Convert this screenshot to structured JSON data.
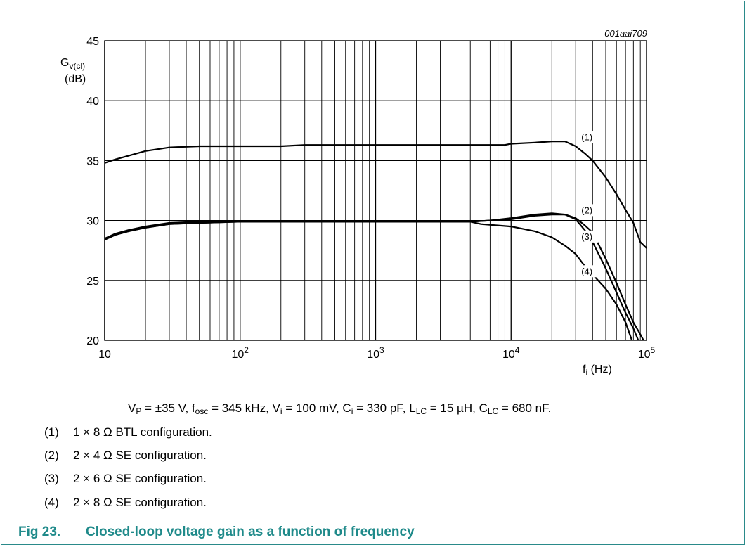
{
  "figure_id": "001aai709",
  "caption": {
    "number": "Fig 23.",
    "title": "Closed-loop voltage gain as a function of frequency"
  },
  "conditions": {
    "vp": "V",
    "vp_sub": "P",
    "vp_val": " = ±35 V, ",
    "fosc": "f",
    "fosc_sub": "osc",
    "fosc_val": " = 345 kHz, ",
    "vi": "V",
    "vi_sub": "i",
    "vi_val": " = 100 mV, ",
    "ci": "C",
    "ci_sub": "i",
    "ci_val": " = 330 pF, ",
    "llc": "L",
    "llc_sub": "LC",
    "llc_val": " = 15 µH, ",
    "clc": "C",
    "clc_sub": "LC",
    "clc_val": " = 680 nF."
  },
  "notes": [
    {
      "num": "(1)",
      "text": "1 × 8 Ω BTL configuration."
    },
    {
      "num": "(2)",
      "text": "2 × 4 Ω SE configuration."
    },
    {
      "num": "(3)",
      "text": "2 × 6 Ω SE configuration."
    },
    {
      "num": "(4)",
      "text": "2 × 8 Ω SE configuration."
    }
  ],
  "chart_data": {
    "type": "line",
    "xscale": "log",
    "xlim": [
      10,
      100000
    ],
    "ylim": [
      20,
      45
    ],
    "xticks": [
      {
        "value": 10,
        "base": "10",
        "exp": ""
      },
      {
        "value": 100,
        "base": "10",
        "exp": "2"
      },
      {
        "value": 1000,
        "base": "10",
        "exp": "3"
      },
      {
        "value": 10000,
        "base": "10",
        "exp": "4"
      },
      {
        "value": 100000,
        "base": "10",
        "exp": "5"
      }
    ],
    "yticks": [
      20,
      25,
      30,
      35,
      40,
      45
    ],
    "ylabel": {
      "main": "G",
      "sub": "v(cl)",
      "unit": "(dB)"
    },
    "xlabel": {
      "main": "f",
      "sub": "i",
      "unit": " (Hz)"
    },
    "grid": true,
    "series": [
      {
        "name": "(1)",
        "points": [
          [
            10,
            34.8
          ],
          [
            12,
            35.1
          ],
          [
            15,
            35.4
          ],
          [
            20,
            35.8
          ],
          [
            30,
            36.1
          ],
          [
            50,
            36.2
          ],
          [
            100,
            36.2
          ],
          [
            200,
            36.2
          ],
          [
            300,
            36.3
          ],
          [
            1000,
            36.3
          ],
          [
            5000,
            36.3
          ],
          [
            9000,
            36.3
          ],
          [
            10000,
            36.4
          ],
          [
            15000,
            36.5
          ],
          [
            20000,
            36.6
          ],
          [
            25000,
            36.6
          ],
          [
            30000,
            36.2
          ],
          [
            35000,
            35.6
          ],
          [
            40000,
            35.0
          ],
          [
            50000,
            33.6
          ],
          [
            60000,
            32.2
          ],
          [
            70000,
            30.9
          ],
          [
            80000,
            29.8
          ],
          [
            90000,
            28.2
          ],
          [
            100000,
            27.7
          ]
        ]
      },
      {
        "name": "(2)",
        "points": [
          [
            10,
            28.4
          ],
          [
            12,
            28.8
          ],
          [
            15,
            29.1
          ],
          [
            20,
            29.4
          ],
          [
            30,
            29.7
          ],
          [
            50,
            29.8
          ],
          [
            100,
            29.9
          ],
          [
            1000,
            29.9
          ],
          [
            5000,
            29.9
          ],
          [
            7000,
            30.0
          ],
          [
            10000,
            30.1
          ],
          [
            15000,
            30.4
          ],
          [
            20000,
            30.5
          ],
          [
            25000,
            30.5
          ],
          [
            30000,
            30.2
          ],
          [
            35000,
            29.6
          ],
          [
            40000,
            29.0
          ],
          [
            50000,
            26.8
          ],
          [
            60000,
            24.8
          ],
          [
            70000,
            23.0
          ],
          [
            80000,
            21.5
          ],
          [
            90000,
            20.5
          ],
          [
            95000,
            20.0
          ]
        ]
      },
      {
        "name": "(3)",
        "points": [
          [
            10,
            28.5
          ],
          [
            12,
            28.9
          ],
          [
            15,
            29.2
          ],
          [
            20,
            29.5
          ],
          [
            30,
            29.8
          ],
          [
            50,
            29.9
          ],
          [
            100,
            29.9
          ],
          [
            1000,
            29.9
          ],
          [
            5000,
            29.9
          ],
          [
            7000,
            30.0
          ],
          [
            10000,
            30.2
          ],
          [
            15000,
            30.5
          ],
          [
            20000,
            30.6
          ],
          [
            25000,
            30.5
          ],
          [
            30000,
            30.1
          ],
          [
            35000,
            29.2
          ],
          [
            40000,
            28.2
          ],
          [
            50000,
            26.0
          ],
          [
            60000,
            24.0
          ],
          [
            70000,
            22.3
          ],
          [
            80000,
            21.0
          ],
          [
            87000,
            20.0
          ]
        ]
      },
      {
        "name": "(4)",
        "points": [
          [
            10,
            28.4
          ],
          [
            12,
            28.8
          ],
          [
            15,
            29.1
          ],
          [
            20,
            29.4
          ],
          [
            30,
            29.7
          ],
          [
            50,
            29.8
          ],
          [
            100,
            29.9
          ],
          [
            1000,
            29.9
          ],
          [
            5000,
            29.9
          ],
          [
            6000,
            29.7
          ],
          [
            10000,
            29.5
          ],
          [
            15000,
            29.1
          ],
          [
            20000,
            28.6
          ],
          [
            25000,
            27.9
          ],
          [
            30000,
            27.2
          ],
          [
            35000,
            26.2
          ],
          [
            40000,
            25.5
          ],
          [
            50000,
            24.3
          ],
          [
            60000,
            23.0
          ],
          [
            70000,
            21.5
          ],
          [
            78000,
            20.0
          ]
        ]
      }
    ],
    "curve_labels": [
      {
        "text": "(1)",
        "x": 33000,
        "y": 36.7
      },
      {
        "text": "(2)",
        "x": 33000,
        "y": 30.6
      },
      {
        "text": "(3)",
        "x": 33000,
        "y": 28.4
      },
      {
        "text": "(4)",
        "x": 33000,
        "y": 25.5
      }
    ]
  }
}
